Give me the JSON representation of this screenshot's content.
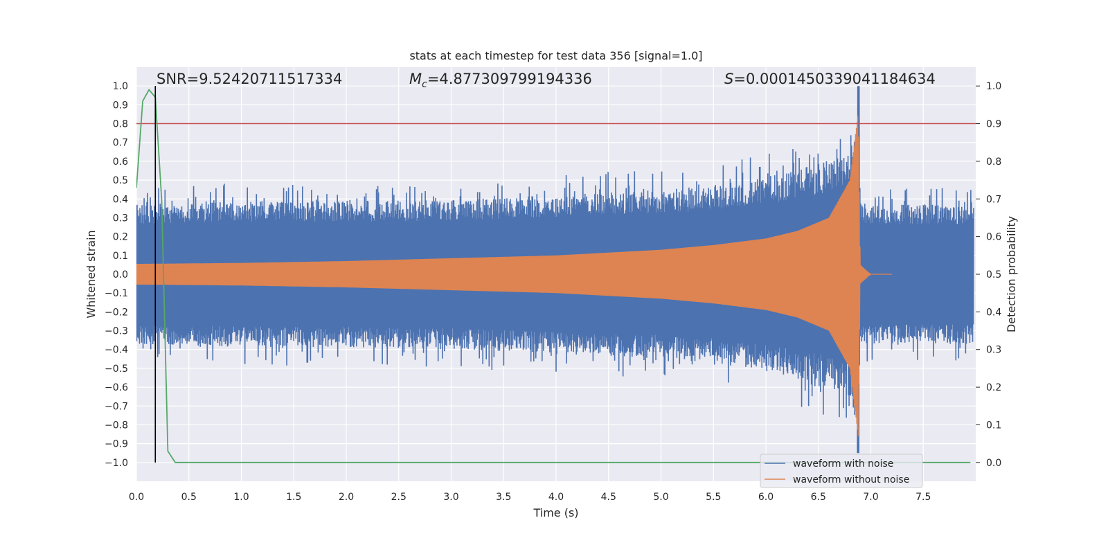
{
  "chart_data": {
    "type": "line",
    "title": "stats at each timestep for test data 356 [signal=1.0]",
    "xlabel": "Time (s)",
    "ylabel": "Whitened strain",
    "y2label": "Detection probability",
    "xlim": [
      0.0,
      8.0
    ],
    "ylim": [
      -1.1,
      1.1
    ],
    "y2lim": [
      -0.05,
      1.05
    ],
    "xticks": [
      0.0,
      0.5,
      1.0,
      1.5,
      2.0,
      2.5,
      3.0,
      3.5,
      4.0,
      4.5,
      5.0,
      5.5,
      6.0,
      6.5,
      7.0,
      7.5
    ],
    "yticks": [
      -1.0,
      -0.9,
      -0.8,
      -0.7,
      -0.6,
      -0.5,
      -0.4,
      -0.3,
      -0.2,
      -0.1,
      0.0,
      0.1,
      0.2,
      0.3,
      0.4,
      0.5,
      0.6,
      0.7,
      0.8,
      0.9,
      1.0
    ],
    "y2ticks": [
      0.0,
      0.1,
      0.2,
      0.3,
      0.4,
      0.5,
      0.6,
      0.7,
      0.8,
      0.9,
      1.0
    ],
    "annotations": {
      "snr": "SNR=9.52420711517334",
      "mc_symbol": "M",
      "mc_sub": "c",
      "mc_value": "=4.877309799194336",
      "s_symbol": "S",
      "s_value": "=0.0001450339041184634"
    },
    "series": [
      {
        "name": "waveform with noise",
        "color": "#4c72b0",
        "style": "noisy strain, amplitude ~0.35-0.45 rising to ~1.0 near merger",
        "envelope_x": [
          0.0,
          1.0,
          2.0,
          3.0,
          4.0,
          5.0,
          5.5,
          6.0,
          6.5,
          6.8,
          6.88,
          6.9,
          7.0,
          8.0
        ],
        "envelope": [
          0.43,
          0.45,
          0.45,
          0.46,
          0.49,
          0.52,
          0.55,
          0.6,
          0.68,
          0.75,
          1.0,
          0.45,
          0.43,
          0.43
        ],
        "merger_time": 6.88
      },
      {
        "name": "waveform without noise",
        "color": "#dd8452",
        "style": "chirp signal growing in amplitude and frequency",
        "envelope_x": [
          0.0,
          1.0,
          2.0,
          3.0,
          4.0,
          5.0,
          5.5,
          6.0,
          6.3,
          6.6,
          6.8,
          6.88,
          6.9,
          7.0
        ],
        "envelope": [
          0.055,
          0.06,
          0.07,
          0.085,
          0.1,
          0.13,
          0.155,
          0.19,
          0.23,
          0.3,
          0.5,
          0.86,
          0.05,
          0.0
        ]
      },
      {
        "name": "detection probability",
        "color": "#55a868",
        "axis": "right",
        "x": [
          0.0,
          0.06,
          0.12,
          0.18,
          0.24,
          0.3,
          0.37,
          0.5,
          1.0,
          2.0,
          3.0,
          4.0,
          5.0,
          6.0,
          7.0,
          7.95
        ],
        "y": [
          0.73,
          0.96,
          0.99,
          0.97,
          0.7,
          0.03,
          0.0,
          0.0,
          0.0,
          0.0,
          0.0,
          0.0,
          0.0,
          0.0,
          0.0,
          0.0
        ]
      }
    ],
    "threshold_line": {
      "y": 0.8,
      "color": "#c44e52"
    },
    "vertical_marker": {
      "x": 0.18,
      "y_from": -1.0,
      "y_to": 1.0,
      "color": "#000000"
    },
    "legend": {
      "placement": "lower-right",
      "entries": [
        "waveform with noise",
        "waveform without noise"
      ]
    }
  }
}
